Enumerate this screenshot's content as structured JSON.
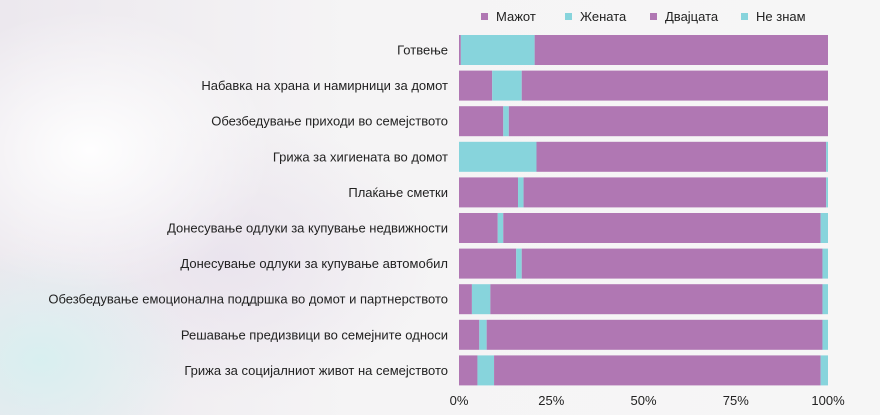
{
  "chart_data": {
    "type": "bar",
    "orientation": "horizontal",
    "stacked": true,
    "categories": [
      "Готвење",
      "Набавка на храна и намирници за домот",
      "Обезбедување приходи во семејството",
      "Грижа за хигиената во домот",
      "Плаќање сметки",
      "Донесување одлуки за купување недвижности",
      "Донесување одлуки за купување автомобил",
      "Обезбедување емоционална поддршка во домот и партнерството",
      "Решавање предизвици во семејните односи",
      "Грижа за социјалниот живот на семејството"
    ],
    "series": [
      {
        "name": "Мажот",
        "color": "#b077b3",
        "values": [
          0.5,
          9,
          12,
          0,
          16,
          10.5,
          15.5,
          3.5,
          5.5,
          5
        ]
      },
      {
        "name": "Жената",
        "color": "#87d4dc",
        "values": [
          20,
          8,
          1.5,
          21,
          1.5,
          1.5,
          1.5,
          5,
          2,
          4.5
        ]
      },
      {
        "name": "Двајцата",
        "color": "#b077b3",
        "values": [
          79.5,
          83,
          86.5,
          78.5,
          82,
          86,
          81.5,
          90,
          91,
          88.5
        ]
      },
      {
        "name": "Не знам",
        "color": "#87d4dc",
        "values": [
          0,
          0,
          0,
          0.5,
          0.5,
          2,
          1.5,
          1.5,
          1.5,
          2
        ]
      }
    ],
    "xticks": [
      "0%",
      "25%",
      "50%",
      "75%",
      "100%"
    ],
    "xlim": [
      0,
      100
    ],
    "legend_position": "top",
    "title": "",
    "xlabel": "",
    "ylabel": ""
  }
}
